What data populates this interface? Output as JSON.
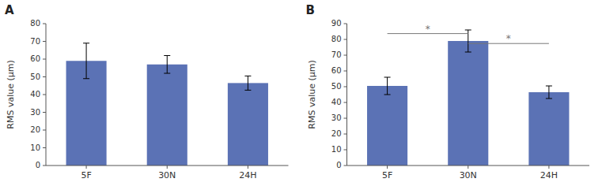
{
  "chart_data": [
    {
      "type": "bar",
      "title": "A",
      "categories": [
        "5F",
        "30N",
        "24H"
      ],
      "values": [
        59,
        57,
        46.5
      ],
      "errors": [
        10,
        5,
        4
      ],
      "ylim": [
        0,
        80
      ],
      "yticks": [
        0,
        10,
        20,
        30,
        40,
        50,
        60,
        70,
        80
      ],
      "ylabel": "RMS value (μm)",
      "color": "#5b72b5",
      "annotations": []
    },
    {
      "type": "bar",
      "title": "B",
      "categories": [
        "5F",
        "30N",
        "24H"
      ],
      "values": [
        50.5,
        79,
        46.5
      ],
      "errors": [
        5.5,
        7,
        4
      ],
      "ylim": [
        0,
        90
      ],
      "yticks": [
        0,
        10,
        20,
        30,
        40,
        50,
        60,
        70,
        80,
        90
      ],
      "ylabel": "RMS value (μm)",
      "color": "#5b72b5",
      "annotations": [
        {
          "from": "5F",
          "to": "30N",
          "label": "*"
        },
        {
          "from": "30N",
          "to": "24H",
          "label": "*"
        }
      ]
    }
  ]
}
